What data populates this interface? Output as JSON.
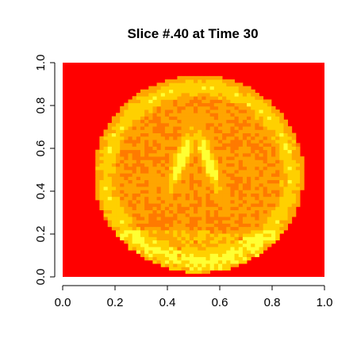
{
  "chart_data": {
    "type": "heatmap",
    "title": "Slice #.40 at Time 30",
    "xlabel": "",
    "ylabel": "",
    "xlim": [
      0,
      1
    ],
    "ylim": [
      0,
      1
    ],
    "x_ticks": [
      "0.0",
      "0.2",
      "0.4",
      "0.6",
      "0.8",
      "1.0"
    ],
    "y_ticks": [
      "0.0",
      "0.2",
      "0.4",
      "0.6",
      "0.8",
      "1.0"
    ],
    "colormap": [
      "#ff0000",
      "#ff4500",
      "#ff7a00",
      "#ffa500",
      "#ffd000",
      "#ffff33"
    ],
    "background_color": "#ff0000",
    "grid": false,
    "legend": "none"
  }
}
